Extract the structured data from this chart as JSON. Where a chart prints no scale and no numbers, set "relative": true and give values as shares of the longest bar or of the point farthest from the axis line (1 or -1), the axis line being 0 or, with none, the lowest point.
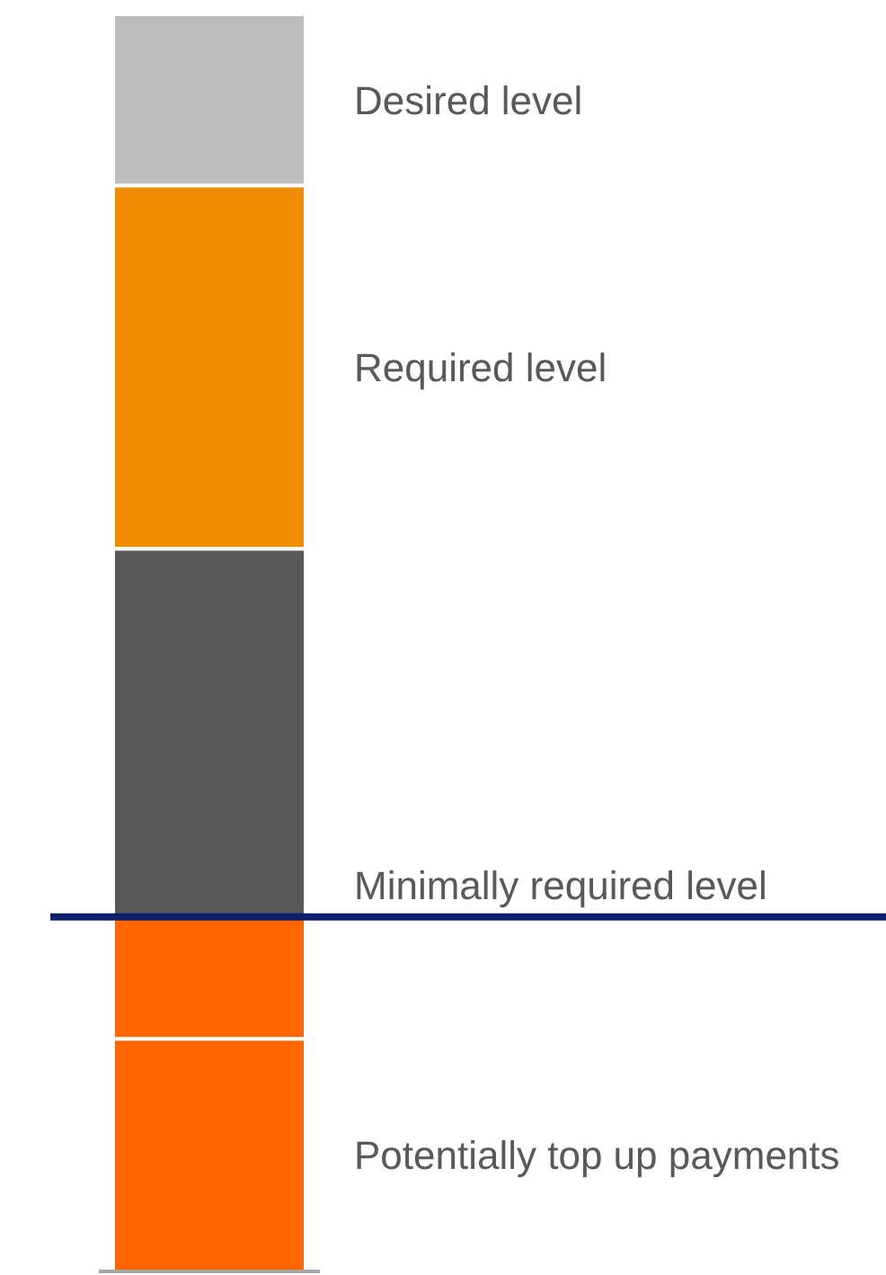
{
  "chart_data": {
    "type": "bar",
    "stacked": true,
    "relative": true,
    "categories": [
      null
    ],
    "series": [
      {
        "name": "Potentially top up payments",
        "color": "#ff6600",
        "values": [
          0.185
        ]
      },
      {
        "color": "#ff6600",
        "values": [
          0.097
        ]
      },
      {
        "color": "#575757",
        "values": [
          0.293
        ]
      },
      {
        "name": "Required level",
        "color": "#f08c00",
        "values": [
          0.289
        ]
      },
      {
        "name": "Desired level",
        "color": "#bdbdbd",
        "values": [
          0.136
        ]
      }
    ],
    "ref_lines": [
      {
        "axis": "y",
        "value": 0.282,
        "label": "Minimally required level",
        "color": "#0d1f6b"
      }
    ]
  }
}
